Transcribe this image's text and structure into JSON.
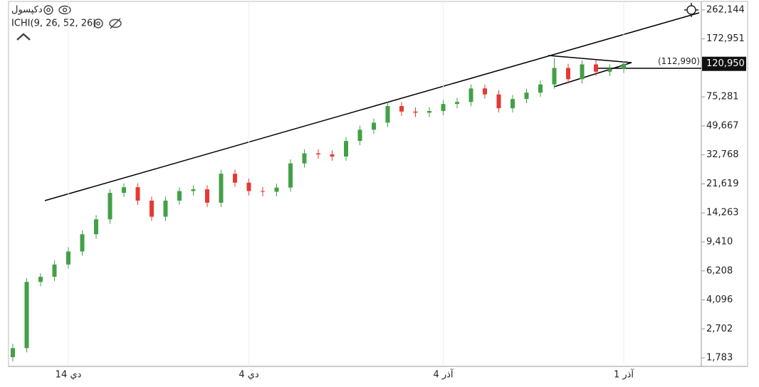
{
  "chart_data": {
    "type": "candlestick",
    "title": "دكپسول",
    "indicator": "ICHI(9, 26, 52, 26)",
    "log_scale": true,
    "up_color": "#43a047",
    "down_color": "#e53935",
    "ylim": [
      1578,
      296000
    ],
    "yticks": [
      {
        "value": 1783,
        "label": "1,783"
      },
      {
        "value": 2702,
        "label": "2,702"
      },
      {
        "value": 4096,
        "label": "4,096"
      },
      {
        "value": 6208,
        "label": "6,208"
      },
      {
        "value": 9410,
        "label": "9,410"
      },
      {
        "value": 14263,
        "label": "14,263"
      },
      {
        "value": 21619,
        "label": "21,619"
      },
      {
        "value": 32768,
        "label": "32,768"
      },
      {
        "value": 49667,
        "label": "49,667"
      },
      {
        "value": 75281,
        "label": "75,281"
      },
      {
        "value": 172951,
        "label": "172,951"
      },
      {
        "value": 262144,
        "label": "262,144"
      }
    ],
    "last_price": {
      "value": 120950,
      "label": "120,950"
    },
    "price_note": "(112,990)",
    "categories": [
      null,
      null,
      null,
      null,
      "14 دي",
      null,
      null,
      null,
      null,
      null,
      null,
      null,
      null,
      null,
      null,
      null,
      null,
      "4 دي",
      null,
      null,
      null,
      null,
      null,
      null,
      null,
      null,
      null,
      null,
      null,
      null,
      null,
      "4 آذر",
      null,
      null,
      null,
      null,
      null,
      null,
      null,
      null,
      null,
      null,
      null,
      null,
      "1 آذر"
    ],
    "open": [
      1800,
      2050,
      5300,
      5700,
      6800,
      8200,
      10500,
      13000,
      19000,
      20600,
      17000,
      13500,
      17000,
      19500,
      20000,
      16500,
      25000,
      22000,
      19500,
      19300,
      20500,
      29000,
      33500,
      33000,
      32000,
      40000,
      47000,
      52000,
      66000,
      61000,
      60000,
      61500,
      68000,
      70000,
      85000,
      78000,
      64000,
      73000,
      80000,
      90000,
      114000,
      97000,
      120000,
      108000,
      113000
    ],
    "high": [
      2180,
      5600,
      6000,
      7200,
      8700,
      11100,
      13800,
      20100,
      21800,
      21800,
      18000,
      18000,
      20600,
      21200,
      21200,
      26500,
      26500,
      23300,
      20700,
      21700,
      30700,
      35500,
      35500,
      35000,
      42400,
      49800,
      55100,
      70000,
      70000,
      64700,
      65200,
      72100,
      74200,
      90100,
      90100,
      82700,
      77400,
      84800,
      95400,
      131000,
      121000,
      127000,
      127000,
      120000,
      125000
    ],
    "low": [
      1690,
      1930,
      4980,
      5360,
      6390,
      7710,
      9870,
      12200,
      17900,
      16000,
      12700,
      12700,
      16000,
      18300,
      15500,
      15500,
      20700,
      18300,
      18100,
      18100,
      19300,
      27300,
      31000,
      30100,
      30100,
      37600,
      44200,
      48900,
      57300,
      56400,
      56400,
      57800,
      63900,
      65800,
      73300,
      60200,
      60200,
      68600,
      75200,
      84600,
      91200,
      91200,
      101500,
      101500,
      106200
    ],
    "close": [
      2050,
      5300,
      5700,
      6800,
      8200,
      10500,
      13000,
      19000,
      20600,
      17000,
      13500,
      17000,
      19500,
      20000,
      16500,
      25000,
      22000,
      19500,
      19300,
      20500,
      29000,
      33500,
      33000,
      32000,
      40000,
      47000,
      52000,
      66000,
      61000,
      60000,
      61500,
      68000,
      70000,
      85000,
      78000,
      64000,
      73000,
      80000,
      90000,
      114000,
      97000,
      120000,
      108000,
      113000,
      120950
    ]
  }
}
